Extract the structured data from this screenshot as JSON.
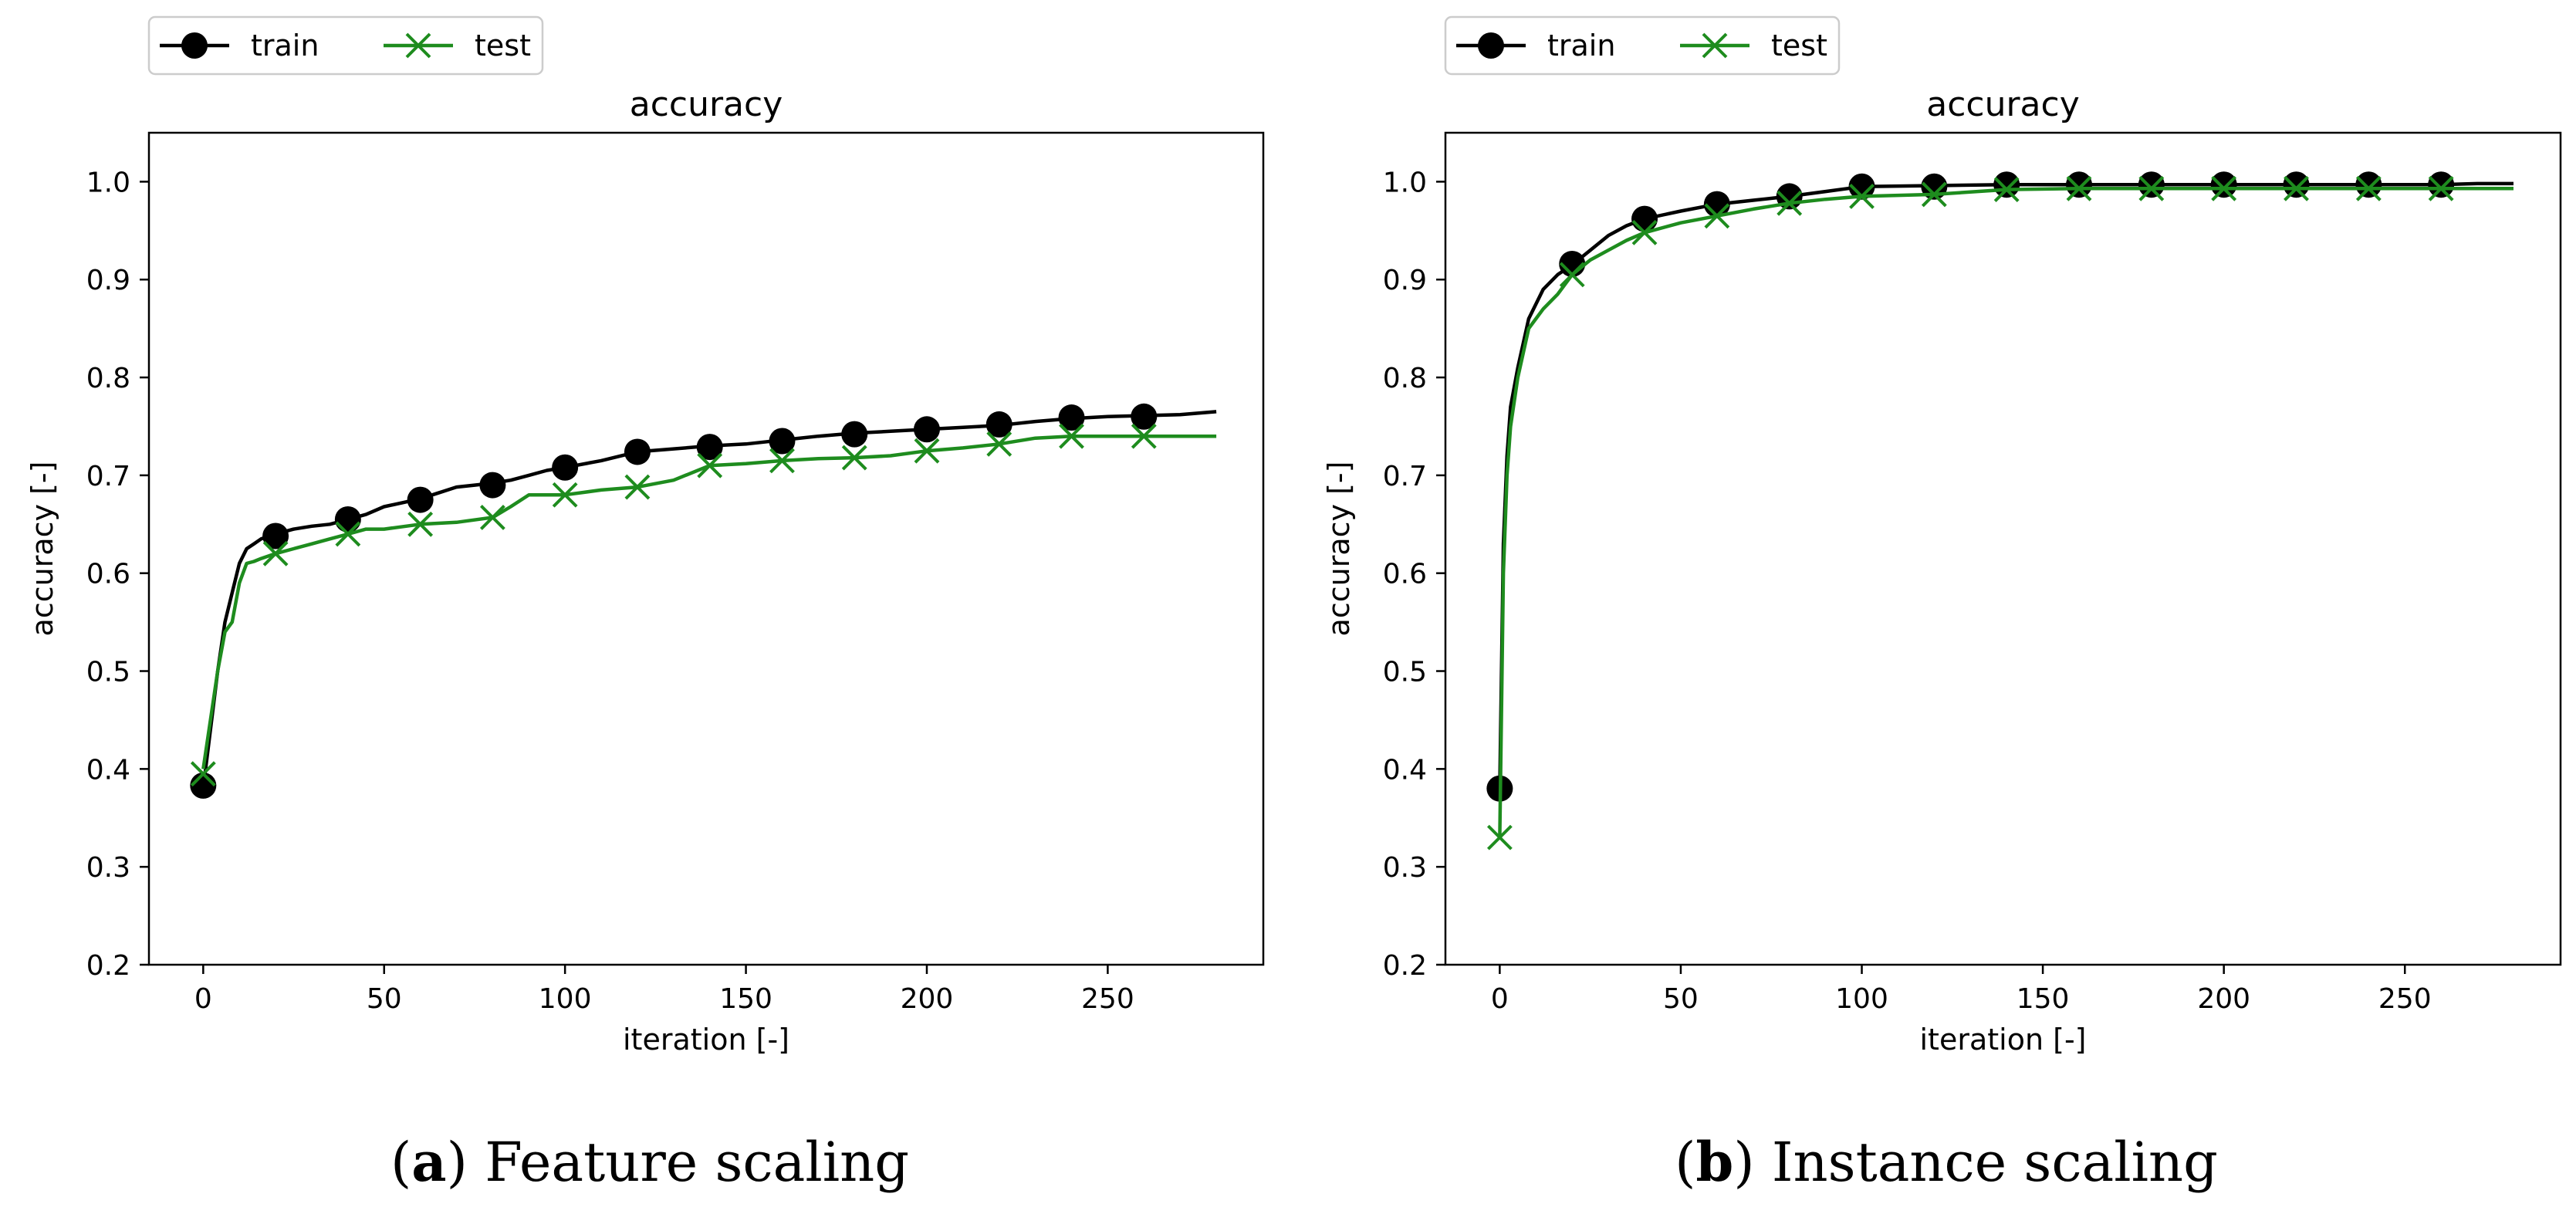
{
  "colors": {
    "train": "#000000",
    "test": "#1e8c1e",
    "background": "#ffffff",
    "axes": "#000000"
  },
  "chart_data": [
    {
      "type": "line",
      "title": "accuracy",
      "xlabel": "iteration [-]",
      "ylabel": "accuracy [-]",
      "xlim": [
        -15,
        293
      ],
      "ylim": [
        0.2,
        1.05
      ],
      "xticks": [
        0,
        50,
        100,
        150,
        200,
        250
      ],
      "yticks": [
        0.2,
        0.3,
        0.4,
        0.5,
        0.6,
        0.7,
        0.8,
        0.9,
        1.0
      ],
      "grid": false,
      "legend": {
        "placement": "above-left",
        "entries": [
          "train",
          "test"
        ]
      },
      "caption": {
        "letter": "a",
        "text": "Feature scaling"
      },
      "series": [
        {
          "name": "train",
          "marker": "circle",
          "color": "#000000",
          "x": [
            0,
            2,
            4,
            6,
            8,
            10,
            12,
            14,
            16,
            20,
            25,
            30,
            35,
            40,
            45,
            50,
            55,
            60,
            65,
            70,
            75,
            80,
            85,
            90,
            95,
            100,
            110,
            120,
            130,
            140,
            150,
            160,
            170,
            180,
            190,
            200,
            210,
            220,
            230,
            240,
            250,
            260,
            270,
            280
          ],
          "y": [
            0.38,
            0.44,
            0.5,
            0.55,
            0.58,
            0.61,
            0.625,
            0.63,
            0.635,
            0.64,
            0.645,
            0.648,
            0.65,
            0.655,
            0.66,
            0.668,
            0.672,
            0.676,
            0.682,
            0.688,
            0.69,
            0.692,
            0.695,
            0.7,
            0.705,
            0.708,
            0.715,
            0.724,
            0.727,
            0.73,
            0.732,
            0.736,
            0.74,
            0.743,
            0.745,
            0.747,
            0.749,
            0.751,
            0.755,
            0.758,
            0.76,
            0.761,
            0.762,
            0.765
          ],
          "marker_x": [
            0,
            20,
            40,
            60,
            80,
            100,
            120,
            140,
            160,
            180,
            200,
            220,
            240,
            260
          ],
          "marker_y": [
            0.383,
            0.638,
            0.655,
            0.675,
            0.69,
            0.708,
            0.724,
            0.729,
            0.735,
            0.742,
            0.747,
            0.752,
            0.759,
            0.76
          ]
        },
        {
          "name": "test",
          "marker": "x",
          "color": "#1e8c1e",
          "x": [
            0,
            2,
            4,
            6,
            8,
            10,
            12,
            14,
            16,
            20,
            25,
            30,
            35,
            40,
            45,
            50,
            60,
            70,
            80,
            85,
            90,
            100,
            110,
            120,
            130,
            140,
            150,
            160,
            170,
            180,
            190,
            200,
            210,
            220,
            230,
            240,
            250,
            260,
            270,
            280
          ],
          "y": [
            0.4,
            0.45,
            0.5,
            0.54,
            0.55,
            0.59,
            0.61,
            0.612,
            0.615,
            0.62,
            0.625,
            0.63,
            0.635,
            0.64,
            0.645,
            0.645,
            0.65,
            0.652,
            0.657,
            0.668,
            0.68,
            0.68,
            0.685,
            0.688,
            0.695,
            0.71,
            0.712,
            0.715,
            0.717,
            0.718,
            0.72,
            0.725,
            0.728,
            0.732,
            0.738,
            0.74,
            0.74,
            0.74,
            0.74,
            0.74
          ],
          "marker_x": [
            0,
            20,
            40,
            60,
            80,
            100,
            120,
            140,
            160,
            180,
            200,
            220,
            240,
            260
          ],
          "marker_y": [
            0.395,
            0.62,
            0.64,
            0.65,
            0.657,
            0.68,
            0.688,
            0.71,
            0.715,
            0.718,
            0.725,
            0.732,
            0.74,
            0.74
          ]
        }
      ]
    },
    {
      "type": "line",
      "title": "accuracy",
      "xlabel": "iteration [-]",
      "ylabel": "accuracy [-]",
      "xlim": [
        -15,
        293
      ],
      "ylim": [
        0.2,
        1.05
      ],
      "xticks": [
        0,
        50,
        100,
        150,
        200,
        250
      ],
      "yticks": [
        0.2,
        0.3,
        0.4,
        0.5,
        0.6,
        0.7,
        0.8,
        0.9,
        1.0
      ],
      "grid": false,
      "legend": {
        "placement": "above-left",
        "entries": [
          "train",
          "test"
        ]
      },
      "caption": {
        "letter": "b",
        "text": "Instance scaling"
      },
      "series": [
        {
          "name": "train",
          "marker": "circle",
          "color": "#000000",
          "x": [
            0,
            1,
            2,
            3,
            5,
            8,
            12,
            16,
            20,
            25,
            30,
            35,
            40,
            50,
            60,
            70,
            80,
            90,
            100,
            120,
            140,
            160,
            180,
            200,
            220,
            240,
            260,
            270,
            280
          ],
          "y": [
            0.38,
            0.63,
            0.72,
            0.77,
            0.81,
            0.86,
            0.89,
            0.905,
            0.915,
            0.93,
            0.945,
            0.955,
            0.962,
            0.97,
            0.977,
            0.981,
            0.985,
            0.99,
            0.995,
            0.996,
            0.997,
            0.997,
            0.997,
            0.997,
            0.997,
            0.997,
            0.997,
            0.998,
            0.998
          ],
          "marker_x": [
            0,
            20,
            40,
            60,
            80,
            100,
            120,
            140,
            160,
            180,
            200,
            220,
            240,
            260
          ],
          "marker_y": [
            0.38,
            0.916,
            0.962,
            0.977,
            0.985,
            0.995,
            0.995,
            0.997,
            0.997,
            0.997,
            0.997,
            0.997,
            0.997,
            0.997
          ]
        },
        {
          "name": "test",
          "marker": "x",
          "color": "#1e8c1e",
          "x": [
            0,
            1,
            2,
            3,
            5,
            8,
            12,
            16,
            20,
            25,
            30,
            35,
            40,
            50,
            60,
            70,
            80,
            90,
            100,
            120,
            140,
            160,
            180,
            200,
            220,
            240,
            260,
            270,
            280
          ],
          "y": [
            0.33,
            0.6,
            0.7,
            0.75,
            0.8,
            0.85,
            0.87,
            0.885,
            0.905,
            0.92,
            0.93,
            0.94,
            0.948,
            0.958,
            0.965,
            0.972,
            0.978,
            0.982,
            0.985,
            0.987,
            0.992,
            0.993,
            0.993,
            0.993,
            0.993,
            0.993,
            0.993,
            0.993,
            0.993
          ],
          "marker_x": [
            0,
            20,
            40,
            60,
            80,
            100,
            120,
            140,
            160,
            180,
            200,
            220,
            240,
            260
          ],
          "marker_y": [
            0.33,
            0.905,
            0.948,
            0.965,
            0.978,
            0.985,
            0.987,
            0.992,
            0.993,
            0.993,
            0.993,
            0.993,
            0.993,
            0.993
          ]
        }
      ]
    }
  ]
}
